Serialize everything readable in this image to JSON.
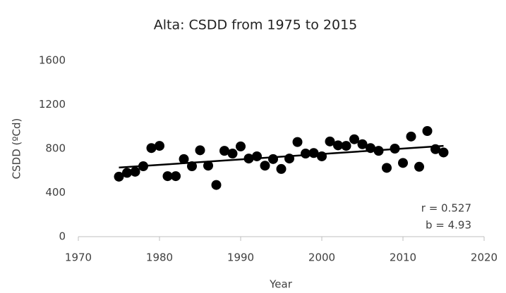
{
  "chart_data": {
    "type": "scatter",
    "title": "Alta: CSDD from 1975 to 2015",
    "x_label": "Year",
    "y_label": "CSDD (ºCd)",
    "x": [
      1975,
      1976,
      1977,
      1978,
      1979,
      1980,
      1981,
      1982,
      1983,
      1984,
      1985,
      1986,
      1987,
      1988,
      1989,
      1990,
      1991,
      1992,
      1993,
      1994,
      1995,
      1996,
      1997,
      1998,
      1999,
      2000,
      2001,
      2002,
      2003,
      2004,
      2005,
      2006,
      2007,
      2008,
      2009,
      2010,
      2011,
      2012,
      2013,
      2014,
      2015
    ],
    "values": [
      545,
      580,
      590,
      640,
      805,
      825,
      550,
      550,
      705,
      640,
      785,
      645,
      470,
      780,
      755,
      820,
      710,
      730,
      645,
      705,
      615,
      710,
      860,
      755,
      760,
      730,
      865,
      830,
      825,
      885,
      840,
      805,
      780,
      625,
      800,
      670,
      910,
      635,
      960,
      795,
      765
    ],
    "color": "#000000",
    "trendline": {
      "x": [
        1975,
        2015
      ],
      "values": [
        628,
        825
      ]
    },
    "annotations": [
      "r = 0.527",
      "b = 4.93"
    ],
    "xlim": [
      1970,
      2020
    ],
    "xticks": [
      1970,
      1980,
      1990,
      2000,
      2010,
      2020
    ],
    "ylim": [
      0,
      1600
    ],
    "yticks": [
      0,
      400,
      800,
      1200,
      1600
    ],
    "grid": false
  }
}
